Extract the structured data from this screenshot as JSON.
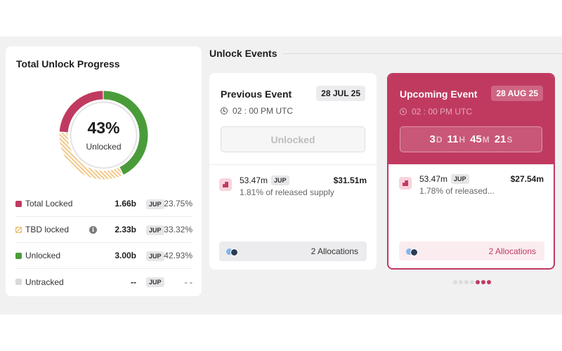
{
  "progress": {
    "title": "Total Unlock Progress",
    "percent_text": "43%",
    "center_label": "Unlocked",
    "colors": {
      "locked": "#c03a60",
      "tbd": "#f0c98a",
      "unlocked": "#4a9c3a",
      "untracked": "#d9d9d9"
    },
    "segments": [
      {
        "key": "locked",
        "fraction": 0.2375
      },
      {
        "key": "tbd",
        "fraction": 0.3332
      },
      {
        "key": "unlocked",
        "fraction": 0.4293
      }
    ],
    "legend": [
      {
        "name": "Total Locked",
        "amount": "1.66b",
        "token": "JUP",
        "pct": "23.75%",
        "swatch": "#c03a60"
      },
      {
        "name": "TBD locked",
        "amount": "2.33b",
        "token": "JUP",
        "pct": "33.32%",
        "swatch": "hatch",
        "info": "i"
      },
      {
        "name": "Unlocked",
        "amount": "3.00b",
        "token": "JUP",
        "pct": "42.93%",
        "swatch": "#4a9c3a"
      },
      {
        "name": "Untracked",
        "amount": "--",
        "token": "JUP",
        "pct": "- -",
        "swatch": "#d9d9d9"
      }
    ]
  },
  "events": {
    "section_title": "Unlock Events",
    "previous": {
      "title": "Previous Event",
      "date": "28 JUL 25",
      "time": "02 : 00 PM UTC",
      "status_label": "Unlocked",
      "amount": "53.47m",
      "token": "JUP",
      "value": "$31.51m",
      "sub": "1.81% of released supply",
      "allocations": "2 Allocations"
    },
    "upcoming": {
      "title": "Upcoming Event",
      "date": "28 AUG 25",
      "time": "02 : 00 PM UTC",
      "countdown": {
        "days": "3",
        "d": "D",
        "hours": "11",
        "h": "H",
        "minutes": "45",
        "m": "M",
        "seconds": "21",
        "s": "S"
      },
      "amount": "53.47m",
      "token": "JUP",
      "value": "$27.54m",
      "sub": "1.78% of released...",
      "allocations": "2 Allocations"
    },
    "pager": {
      "count": 7,
      "active": [
        4,
        5,
        6
      ]
    }
  }
}
